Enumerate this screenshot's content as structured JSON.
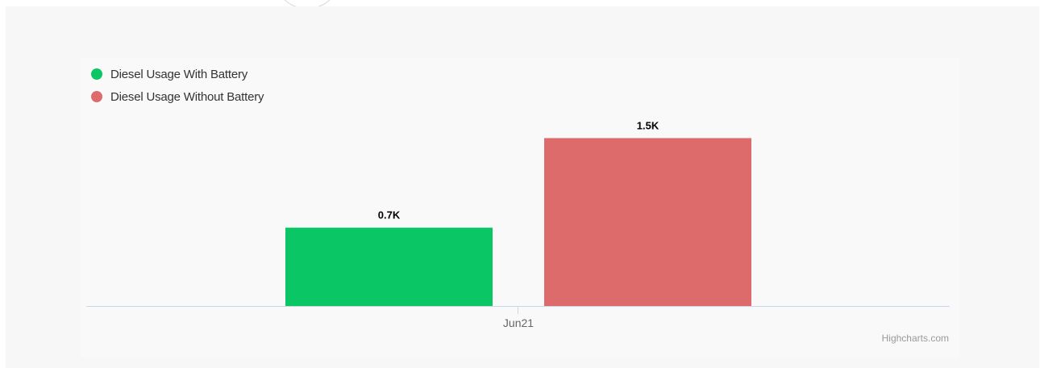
{
  "chart_data": {
    "type": "bar",
    "categories": [
      "Jun21"
    ],
    "series": [
      {
        "name": "Diesel Usage With Battery",
        "values": [
          0.7
        ],
        "label": "0.7K",
        "color": "#0ac664"
      },
      {
        "name": "Diesel Usage Without Battery",
        "values": [
          1.5
        ],
        "label": "1.5K",
        "color": "#de6b6b"
      }
    ],
    "unit": "K",
    "title": "",
    "xlabel": "",
    "ylabel": "",
    "ylim": [
      0,
      1.6
    ],
    "grid": false,
    "legend_position": "top-left"
  },
  "credit": "Highcharts.com"
}
